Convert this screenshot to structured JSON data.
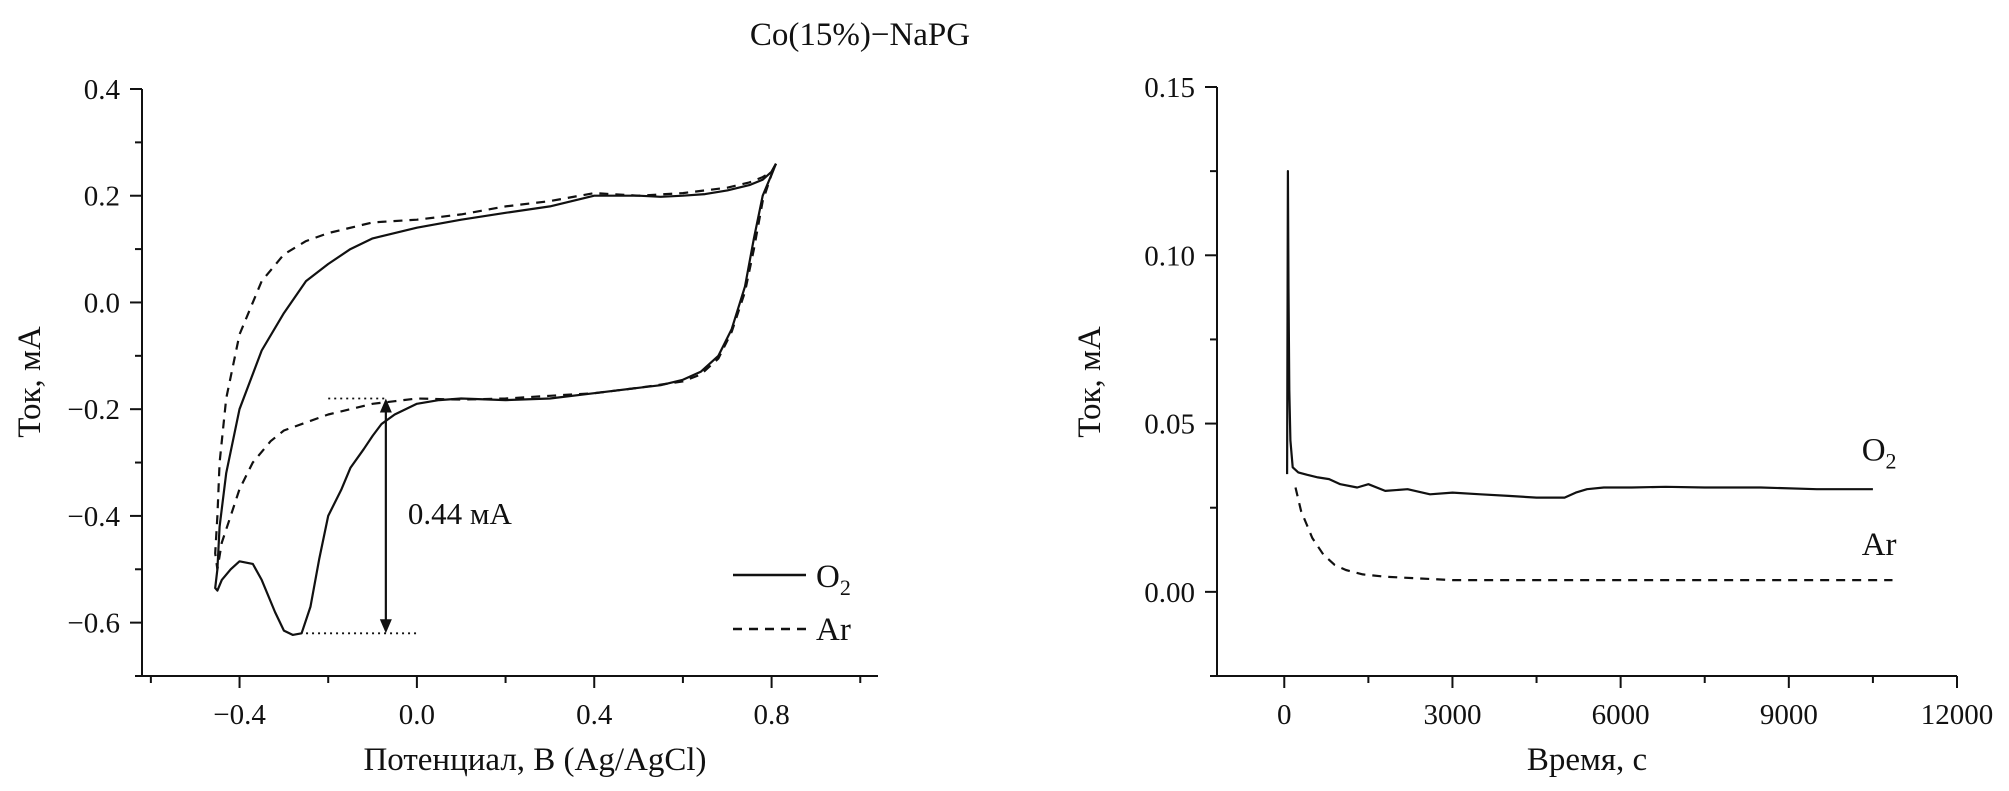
{
  "title": "Co(15%)−NaPG",
  "chart_data": [
    {
      "type": "line",
      "title": "",
      "xlabel": "Потенциал, В (Ag/AgCl)",
      "ylabel": "Ток, мА",
      "xlim": [
        -0.62,
        1.04
      ],
      "ylim": [
        -0.7,
        0.4
      ],
      "xticks": [
        {
          "value": -0.4,
          "label": "−0.4"
        },
        {
          "value": 0.0,
          "label": "0.0"
        },
        {
          "value": 0.4,
          "label": "0.4"
        },
        {
          "value": 0.8,
          "label": "0.8"
        }
      ],
      "yticks": [
        {
          "value": 0.4,
          "label": "0.4"
        },
        {
          "value": 0.2,
          "label": "0.2"
        },
        {
          "value": 0.0,
          "label": "0.0"
        },
        {
          "value": -0.2,
          "label": "−0.2"
        },
        {
          "value": -0.4,
          "label": "−0.4"
        },
        {
          "value": -0.6,
          "label": "−0.6"
        }
      ],
      "grid": false,
      "legend_position": "bottom-right",
      "annotations": [
        {
          "text": "0.44 мА",
          "x_from": -0.07,
          "y_from": -0.62,
          "x_to": -0.07,
          "y_to": -0.18
        }
      ],
      "reference_lines": [
        {
          "style": "dotted",
          "x": [
            -0.25,
            0.0
          ],
          "y": [
            -0.62,
            -0.62
          ]
        },
        {
          "style": "dotted",
          "x": [
            -0.2,
            -0.07
          ],
          "y": [
            -0.18,
            -0.18
          ]
        }
      ],
      "series": [
        {
          "name": "O",
          "name_sub": "2",
          "style": "solid",
          "x": [
            0.81,
            0.8,
            0.78,
            0.75,
            0.7,
            0.65,
            0.6,
            0.55,
            0.5,
            0.4,
            0.3,
            0.2,
            0.1,
            0.0,
            -0.05,
            -0.1,
            -0.15,
            -0.2,
            -0.25,
            -0.3,
            -0.35,
            -0.4,
            -0.43,
            -0.445,
            -0.45,
            -0.455,
            -0.45,
            -0.44,
            -0.42,
            -0.4,
            -0.37,
            -0.35,
            -0.32,
            -0.3,
            -0.28,
            -0.26,
            -0.24,
            -0.22,
            -0.2,
            -0.17,
            -0.15,
            -0.12,
            -0.1,
            -0.08,
            -0.05,
            0.0,
            0.05,
            0.1,
            0.2,
            0.3,
            0.4,
            0.5,
            0.55,
            0.6,
            0.64,
            0.68,
            0.71,
            0.74,
            0.76,
            0.78,
            0.8,
            0.81
          ],
          "y": [
            0.26,
            0.245,
            0.23,
            0.22,
            0.21,
            0.203,
            0.2,
            0.198,
            0.2,
            0.2,
            0.18,
            0.168,
            0.155,
            0.14,
            0.13,
            0.12,
            0.1,
            0.072,
            0.04,
            -0.02,
            -0.09,
            -0.2,
            -0.32,
            -0.42,
            -0.5,
            -0.535,
            -0.54,
            -0.52,
            -0.5,
            -0.485,
            -0.49,
            -0.52,
            -0.58,
            -0.615,
            -0.623,
            -0.62,
            -0.57,
            -0.48,
            -0.4,
            -0.35,
            -0.31,
            -0.275,
            -0.25,
            -0.228,
            -0.21,
            -0.19,
            -0.183,
            -0.18,
            -0.183,
            -0.18,
            -0.17,
            -0.16,
            -0.155,
            -0.145,
            -0.13,
            -0.1,
            -0.05,
            0.03,
            0.12,
            0.2,
            0.24,
            0.26
          ]
        },
        {
          "name": "Ar",
          "style": "dashed",
          "x": [
            0.81,
            0.8,
            0.78,
            0.75,
            0.7,
            0.6,
            0.5,
            0.4,
            0.3,
            0.2,
            0.1,
            0.0,
            -0.1,
            -0.2,
            -0.25,
            -0.3,
            -0.35,
            -0.4,
            -0.43,
            -0.445,
            -0.45,
            -0.455,
            -0.45,
            -0.44,
            -0.42,
            -0.4,
            -0.37,
            -0.33,
            -0.3,
            -0.25,
            -0.2,
            -0.15,
            -0.1,
            -0.05,
            0.0,
            0.1,
            0.2,
            0.3,
            0.4,
            0.5,
            0.6,
            0.64,
            0.68,
            0.71,
            0.74,
            0.76,
            0.78,
            0.8,
            0.81
          ],
          "y": [
            0.26,
            0.245,
            0.235,
            0.225,
            0.215,
            0.205,
            0.2,
            0.205,
            0.19,
            0.18,
            0.165,
            0.155,
            0.15,
            0.13,
            0.115,
            0.09,
            0.04,
            -0.06,
            -0.18,
            -0.3,
            -0.4,
            -0.47,
            -0.5,
            -0.45,
            -0.4,
            -0.35,
            -0.3,
            -0.26,
            -0.24,
            -0.225,
            -0.21,
            -0.2,
            -0.19,
            -0.185,
            -0.18,
            -0.182,
            -0.18,
            -0.175,
            -0.17,
            -0.16,
            -0.148,
            -0.135,
            -0.105,
            -0.055,
            0.02,
            0.1,
            0.19,
            0.24,
            0.26
          ]
        }
      ]
    },
    {
      "type": "line",
      "title": "",
      "xlabel": "Время, с",
      "ylabel": "Ток, мА",
      "xlim": [
        -1200,
        12000
      ],
      "ylim": [
        -0.025,
        0.15
      ],
      "xticks": [
        {
          "value": 0,
          "label": "0"
        },
        {
          "value": 3000,
          "label": "3000"
        },
        {
          "value": 6000,
          "label": "6000"
        },
        {
          "value": 9000,
          "label": "9000"
        },
        {
          "value": 12000,
          "label": "12000"
        }
      ],
      "yticks": [
        {
          "value": 0.15,
          "label": "0.15"
        },
        {
          "value": 0.1,
          "label": "0.10"
        },
        {
          "value": 0.05,
          "label": "0.05"
        },
        {
          "value": 0.0,
          "label": "0.00"
        }
      ],
      "grid": false,
      "legend_position": "inline",
      "series": [
        {
          "name": "O",
          "name_sub": "2",
          "style": "solid",
          "label_at": [
            10300,
            0.039
          ],
          "x": [
            50,
            60,
            65,
            75,
            90,
            110,
            150,
            250,
            400,
            600,
            800,
            1000,
            1300,
            1500,
            1800,
            2200,
            2600,
            3000,
            3500,
            4000,
            4500,
            5000,
            5200,
            5400,
            5700,
            6200,
            6800,
            7500,
            8500,
            9500,
            10500
          ],
          "y": [
            0.035,
            0.09,
            0.125,
            0.09,
            0.06,
            0.045,
            0.037,
            0.0355,
            0.0348,
            0.034,
            0.0335,
            0.032,
            0.031,
            0.032,
            0.03,
            0.0305,
            0.029,
            0.0295,
            0.029,
            0.0285,
            0.028,
            0.028,
            0.0295,
            0.0305,
            0.031,
            0.031,
            0.0312,
            0.031,
            0.031,
            0.0305,
            0.0305
          ]
        },
        {
          "name": "Ar",
          "style": "dashed",
          "label_at": [
            10300,
            0.011
          ],
          "x": [
            200,
            300,
            400,
            500,
            700,
            900,
            1100,
            1400,
            1800,
            2400,
            3000,
            4000,
            5000,
            6000,
            7000,
            8000,
            9000,
            10000,
            10850
          ],
          "y": [
            0.031,
            0.024,
            0.02,
            0.016,
            0.011,
            0.008,
            0.0065,
            0.0052,
            0.0045,
            0.004,
            0.0035,
            0.0035,
            0.0035,
            0.0035,
            0.0035,
            0.0035,
            0.0035,
            0.0035,
            0.0035
          ]
        }
      ]
    }
  ]
}
